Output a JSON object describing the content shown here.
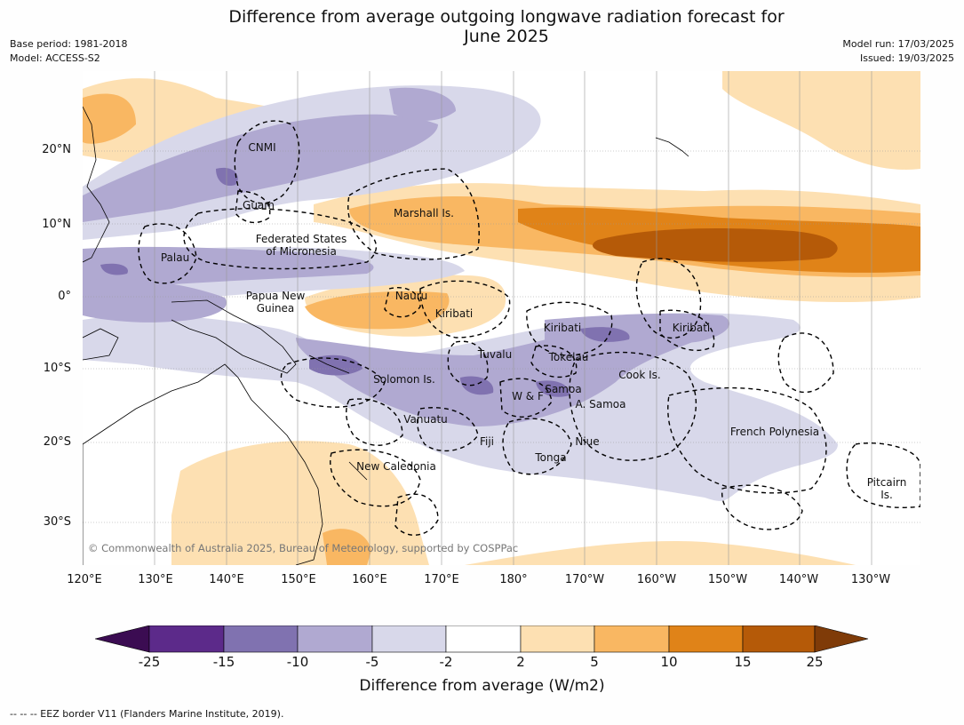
{
  "title_line1": "Difference from average outgoing longwave radiation forecast for",
  "title_line2": "June 2025",
  "meta_left": {
    "base_period": "Base period: 1981-2018",
    "model": "Model: ACCESS-S2"
  },
  "meta_right": {
    "model_run": "Model run: 17/03/2025",
    "issued": "Issued: 19/03/2025"
  },
  "lat_labels": [
    "20°N",
    "10°N",
    "0°",
    "10°S",
    "20°S",
    "30°S"
  ],
  "lon_labels": [
    "120°E",
    "130°E",
    "140°E",
    "150°E",
    "160°E",
    "170°E",
    "180°",
    "170°W",
    "160°W",
    "150°W",
    "140°W",
    "130°W"
  ],
  "places": [
    "CNMI",
    "Guam",
    "Marshall Is.",
    "Federated States",
    "of Micronesia",
    "Palau",
    "Papua New",
    "Guinea",
    "Nauru",
    "Kiribati",
    "Kiribati",
    "Kiribati",
    "Tuvalu",
    "Tokelau",
    "Cook Is.",
    "Solomon Is.",
    "W & F",
    "Samoa",
    "A. Samoa",
    "Vanuatu",
    "Fiji",
    "Niue",
    "Tonga",
    "French Polynesia",
    "New Caledonia",
    "Pitcairn",
    "Is."
  ],
  "copyright": "© Commonwealth of Australia 2025, Bureau of Meteorology, supported by COSPPac",
  "colorbar": {
    "ticks": [
      "-25",
      "-15",
      "-10",
      "-5",
      "-2",
      "2",
      "5",
      "10",
      "15",
      "25"
    ],
    "colors": [
      "#3b0c52",
      "#5c2a8a",
      "#8072b0",
      "#b0a9d1",
      "#d8d8ea",
      "#ffffff",
      "#fde0b2",
      "#f9b762",
      "#e08318",
      "#b55a08",
      "#7f3b08"
    ],
    "title": "Difference from average (W/m2)"
  },
  "eez_note": "--  --  -- EEZ border V11 (Flanders Marine Institute, 2019)."
}
